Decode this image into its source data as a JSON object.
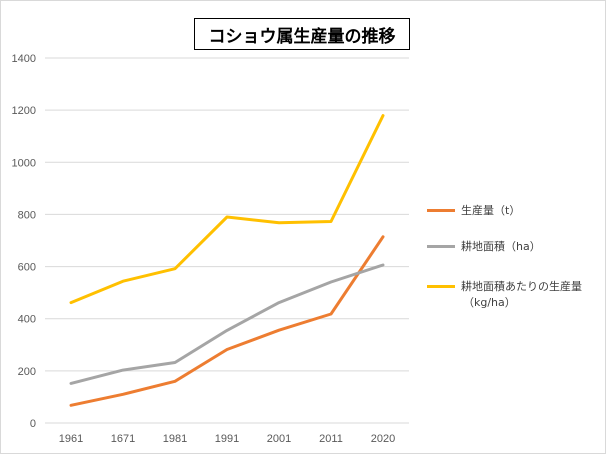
{
  "chart_data": {
    "type": "line",
    "title": "コショウ属生産量の推移",
    "categories": [
      "1961",
      "1671",
      "1981",
      "1991",
      "2001",
      "2011",
      "2020"
    ],
    "ylim": [
      0,
      1400
    ],
    "yticks": [
      0,
      200,
      400,
      600,
      800,
      1000,
      1200,
      1400
    ],
    "grid": true,
    "legend_position": "right",
    "series": [
      {
        "name": "生産量（t）",
        "color": "#ED7D31",
        "values": [
          68,
          110,
          160,
          282,
          356,
          418,
          714
        ]
      },
      {
        "name": "耕地面積（ha）",
        "color": "#A5A5A5",
        "values": [
          152,
          203,
          232,
          355,
          462,
          541,
          606
        ]
      },
      {
        "name_line1": "耕地面積あたりの生産量",
        "name_line2": "（kg/ha）",
        "color": "#FFC000",
        "values": [
          462,
          544,
          592,
          790,
          768,
          773,
          1179
        ]
      }
    ]
  }
}
